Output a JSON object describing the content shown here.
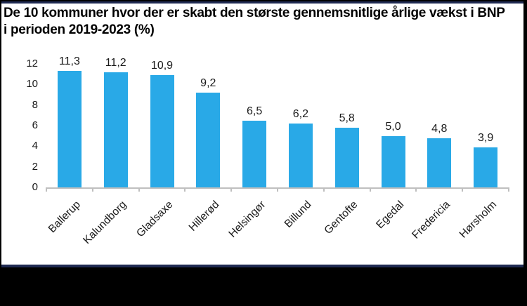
{
  "figure": {
    "title": "De 10 kommuner hvor der er skabt den største gennemsnitlige årlige vækst i BNP i perioden 2019-2023 (%)",
    "frame_navy_color": "#1f2a52",
    "frame_black_color": "#000000",
    "axis_color": "#bfbfbf"
  },
  "chart_data": {
    "type": "bar",
    "title": "De 10 kommuner hvor der er skabt den største gennemsnitlige årlige vækst i BNP i perioden 2019-2023 (%)",
    "categories": [
      "Ballerup",
      "Kalundborg",
      "Gladsaxe",
      "Hillerød",
      "Helsingør",
      "Billund",
      "Gentofte",
      "Egedal",
      "Fredericia",
      "Hørsholm"
    ],
    "values": [
      11.3,
      11.2,
      10.9,
      9.2,
      6.5,
      6.2,
      5.8,
      5.0,
      4.8,
      3.9
    ],
    "value_labels": [
      "11,3",
      "11,2",
      "10,9",
      "9,2",
      "6,5",
      "6,2",
      "5,8",
      "5,0",
      "4,8",
      "3,9"
    ],
    "y_ticks": [
      0,
      2,
      4,
      6,
      8,
      10,
      12
    ],
    "ylim": [
      0,
      12
    ],
    "xlabel": "",
    "ylabel": "",
    "grid": false,
    "legend": false,
    "bar_color": "#29a9e7"
  }
}
